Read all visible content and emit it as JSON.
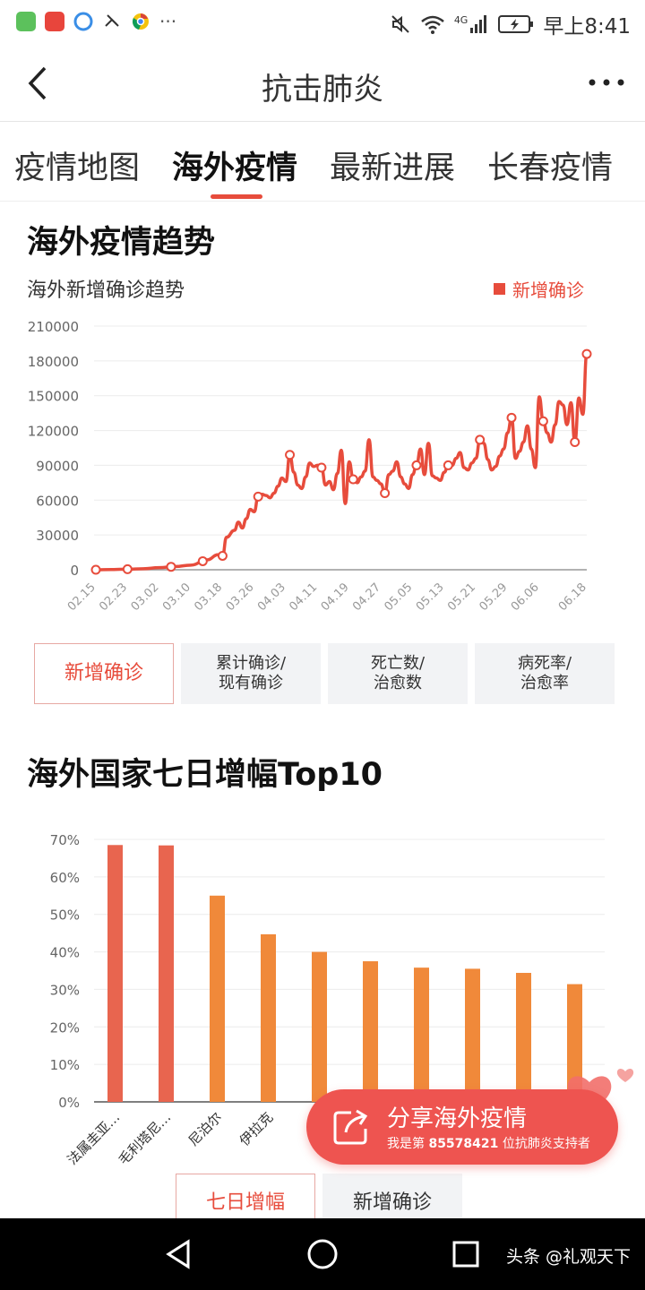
{
  "status_bar": {
    "time": "早上8:41",
    "network": "4G",
    "app_icons": [
      "green-app-icon",
      "toutiao-icon",
      "browser-icon",
      "call-icon",
      "chrome-icon"
    ],
    "more": "···"
  },
  "nav": {
    "title": "抗击肺炎",
    "more_label": "···"
  },
  "tabs": [
    {
      "label": "疫情地图"
    },
    {
      "label": "海外疫情"
    },
    {
      "label": "最新进展"
    },
    {
      "label": "长春疫情"
    }
  ],
  "trend": {
    "section_title": "海外疫情趋势",
    "subtitle": "海外新增确诊趋势",
    "legend": "新增确诊",
    "metrics": [
      {
        "label": "新增确诊"
      },
      {
        "line1": "累计确诊/",
        "line2": "现有确诊"
      },
      {
        "line1": "死亡数/",
        "line2": "治愈数"
      },
      {
        "line1": "病死率/",
        "line2": "治愈率"
      }
    ]
  },
  "top10": {
    "section_title": "海外国家七日增幅Top10",
    "toggles": [
      {
        "label": "七日增幅"
      },
      {
        "label": "新增确诊"
      }
    ]
  },
  "share": {
    "title": "分享海外疫情",
    "sub_prefix": "我是第 ",
    "number": "85578421",
    "sub_suffix": " 位抗肺炎支持者"
  },
  "watermark": "头条 @礼观天下",
  "colors": {
    "accent": "#e74c3c",
    "bar_red": "#e8654f",
    "bar_orange": "#f0893a",
    "share_bg": "#ee5450"
  },
  "chart_data": [
    {
      "type": "line",
      "title": "海外新增确诊趋势",
      "series": [
        {
          "name": "新增确诊"
        }
      ],
      "x_ticks": [
        "02.15",
        "02.23",
        "03.02",
        "03.10",
        "03.18",
        "03.26",
        "04.03",
        "04.11",
        "04.19",
        "04.27",
        "05.05",
        "05.13",
        "05.21",
        "05.29",
        "06.06",
        "06.18"
      ],
      "y_ticks": [
        0,
        30000,
        60000,
        90000,
        120000,
        150000,
        180000,
        210000
      ],
      "ylim": [
        0,
        210000
      ],
      "grid": true,
      "legend_position": "top-right",
      "points": [
        [
          "02.15",
          0
        ],
        [
          "02.19",
          200
        ],
        [
          "02.23",
          500
        ],
        [
          "02.27",
          900
        ],
        [
          "03.02",
          1800
        ],
        [
          "03.06",
          2800
        ],
        [
          "03.10",
          4000
        ],
        [
          "03.14",
          8500
        ],
        [
          "03.17",
          13000
        ],
        [
          "03.18",
          12000
        ],
        [
          "03.19",
          28000
        ],
        [
          "03.21",
          34000
        ],
        [
          "03.22",
          41000
        ],
        [
          "03.23",
          36000
        ],
        [
          "03.24",
          44000
        ],
        [
          "03.25",
          52000
        ],
        [
          "03.26",
          50000
        ],
        [
          "03.27",
          63000
        ],
        [
          "03.28",
          65000
        ],
        [
          "03.29",
          64000
        ],
        [
          "03.30",
          62000
        ],
        [
          "03.31",
          66000
        ],
        [
          "04.01",
          72000
        ],
        [
          "04.02",
          79000
        ],
        [
          "04.03",
          76000
        ],
        [
          "04.04",
          99000
        ],
        [
          "04.05",
          84000
        ],
        [
          "04.06",
          73000
        ],
        [
          "04.07",
          70000
        ],
        [
          "04.08",
          80000
        ],
        [
          "04.09",
          92000
        ],
        [
          "04.10",
          89000
        ],
        [
          "04.11",
          90000
        ],
        [
          "04.12",
          88000
        ],
        [
          "04.13",
          73000
        ],
        [
          "04.14",
          76000
        ],
        [
          "04.15",
          69000
        ],
        [
          "04.16",
          83000
        ],
        [
          "04.17",
          103000
        ],
        [
          "04.18",
          57000
        ],
        [
          "04.19",
          93000
        ],
        [
          "04.20",
          78000
        ],
        [
          "04.21",
          75000
        ],
        [
          "04.22",
          80000
        ],
        [
          "04.23",
          85000
        ],
        [
          "04.24",
          112000
        ],
        [
          "04.25",
          80000
        ],
        [
          "04.26",
          77000
        ],
        [
          "04.27",
          74000
        ],
        [
          "04.28",
          66000
        ],
        [
          "04.29",
          82000
        ],
        [
          "04.30",
          85000
        ],
        [
          "05.01",
          93000
        ],
        [
          "05.02",
          80000
        ],
        [
          "05.03",
          74000
        ],
        [
          "05.04",
          70000
        ],
        [
          "05.05",
          82000
        ],
        [
          "05.06",
          90000
        ],
        [
          "05.07",
          104000
        ],
        [
          "05.08",
          82000
        ],
        [
          "05.09",
          109000
        ],
        [
          "05.10",
          81000
        ],
        [
          "05.11",
          79000
        ],
        [
          "05.12",
          77000
        ],
        [
          "05.13",
          84000
        ],
        [
          "05.14",
          90000
        ],
        [
          "05.15",
          90000
        ],
        [
          "05.16",
          96000
        ],
        [
          "05.17",
          101000
        ],
        [
          "05.18",
          88000
        ],
        [
          "05.19",
          86000
        ],
        [
          "05.20",
          92000
        ],
        [
          "05.21",
          96000
        ],
        [
          "05.22",
          112000
        ],
        [
          "05.23",
          109000
        ],
        [
          "05.24",
          95000
        ],
        [
          "05.25",
          86000
        ],
        [
          "05.26",
          89000
        ],
        [
          "05.27",
          98000
        ],
        [
          "05.28",
          104000
        ],
        [
          "05.29",
          118000
        ],
        [
          "05.30",
          131000
        ],
        [
          "05.31",
          96000
        ],
        [
          "06.01",
          102000
        ],
        [
          "06.02",
          110000
        ],
        [
          "06.03",
          124000
        ],
        [
          "06.04",
          104000
        ],
        [
          "06.05",
          88000
        ],
        [
          "06.06",
          149000
        ],
        [
          "06.07",
          128000
        ],
        [
          "06.08",
          118000
        ],
        [
          "06.09",
          110000
        ],
        [
          "06.10",
          125000
        ],
        [
          "06.11",
          145000
        ],
        [
          "06.12",
          142000
        ],
        [
          "06.13",
          125000
        ],
        [
          "06.14",
          144000
        ],
        [
          "06.15",
          110000
        ],
        [
          "06.16",
          148000
        ],
        [
          "06.17",
          134000
        ],
        [
          "06.18",
          186000
        ]
      ],
      "markers": [
        "02.15",
        "02.23",
        "03.05",
        "03.13",
        "03.18",
        "03.27",
        "04.04",
        "04.12",
        "04.20",
        "04.28",
        "05.06",
        "05.14",
        "05.22",
        "05.30",
        "06.07",
        "06.15",
        "06.18"
      ]
    },
    {
      "type": "bar",
      "title": "海外国家七日增幅Top10",
      "categories": [
        "法属圭亚…",
        "毛利塔尼…",
        "尼泊尔",
        "伊拉克",
        "",
        "",
        "",
        "",
        "",
        ""
      ],
      "values": [
        68.5,
        68.4,
        55.0,
        44.7,
        40.0,
        37.5,
        35.8,
        35.5,
        34.4,
        31.4
      ],
      "y_ticks": [
        "0%",
        "10%",
        "20%",
        "30%",
        "40%",
        "50%",
        "60%",
        "70%"
      ],
      "ylim": [
        0,
        70
      ],
      "grid": true
    }
  ]
}
